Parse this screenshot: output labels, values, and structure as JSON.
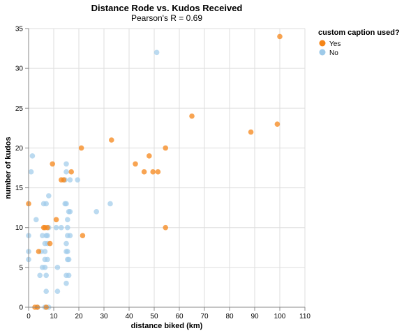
{
  "colors": {
    "yes": "#f58518",
    "no": "#9ecae9",
    "grid": "#dddddd",
    "axis": "#888888"
  },
  "chart_data": {
    "type": "scatter",
    "title": "Distance Rode vs. Kudos Received",
    "subtitle": "Pearson's R = 0.69",
    "xlabel": "distance biked (km)",
    "ylabel": "number of kudos",
    "xlim": [
      0,
      110
    ],
    "ylim": [
      0,
      35
    ],
    "x_ticks": [
      "0",
      "10",
      "20",
      "30",
      "40",
      "50",
      "60",
      "70",
      "80",
      "90",
      "100",
      "110"
    ],
    "y_ticks": [
      "0",
      "5",
      "10",
      "15",
      "20",
      "25",
      "30",
      "35"
    ],
    "grid": true,
    "legend": {
      "title": "custom caption used?",
      "position": "right",
      "entries": [
        "Yes",
        "No"
      ]
    },
    "series": [
      {
        "name": "Yes",
        "points": [
          [
            0,
            13
          ],
          [
            2.5,
            0
          ],
          [
            3.5,
            0
          ],
          [
            4,
            7
          ],
          [
            6,
            10
          ],
          [
            6.5,
            10
          ],
          [
            7,
            0
          ],
          [
            7.5,
            10
          ],
          [
            8.5,
            8
          ],
          [
            9.5,
            18
          ],
          [
            11,
            11
          ],
          [
            13,
            16
          ],
          [
            14,
            16
          ],
          [
            17,
            17
          ],
          [
            21,
            20
          ],
          [
            21.5,
            9
          ],
          [
            33,
            21
          ],
          [
            42.5,
            18
          ],
          [
            46,
            17
          ],
          [
            48,
            19
          ],
          [
            49.5,
            17
          ],
          [
            51.5,
            17
          ],
          [
            54.5,
            20
          ],
          [
            54.5,
            10
          ],
          [
            65,
            24
          ],
          [
            88.5,
            22
          ],
          [
            99,
            23
          ],
          [
            100,
            34
          ]
        ]
      },
      {
        "name": "No",
        "points": [
          [
            0,
            9
          ],
          [
            0,
            7
          ],
          [
            0,
            6
          ],
          [
            1,
            17
          ],
          [
            1.5,
            19
          ],
          [
            3,
            11
          ],
          [
            3.5,
            0
          ],
          [
            4.5,
            4
          ],
          [
            5,
            7
          ],
          [
            5.5,
            5
          ],
          [
            5.5,
            9
          ],
          [
            6,
            13
          ],
          [
            6.5,
            8
          ],
          [
            6.5,
            7
          ],
          [
            6.5,
            6
          ],
          [
            6.5,
            5
          ],
          [
            6.5,
            0
          ],
          [
            7,
            13
          ],
          [
            7,
            9
          ],
          [
            7,
            4
          ],
          [
            7,
            2
          ],
          [
            7.5,
            8
          ],
          [
            7.5,
            9
          ],
          [
            7.5,
            6
          ],
          [
            8,
            10
          ],
          [
            8,
            14
          ],
          [
            8,
            0
          ],
          [
            11,
            10
          ],
          [
            11.5,
            5
          ],
          [
            11.5,
            2
          ],
          [
            13,
            10
          ],
          [
            14.5,
            13
          ],
          [
            14.5,
            16
          ],
          [
            15,
            13
          ],
          [
            15,
            7
          ],
          [
            15,
            18
          ],
          [
            15,
            17
          ],
          [
            15,
            8
          ],
          [
            15,
            4
          ],
          [
            15,
            3
          ],
          [
            15.5,
            9
          ],
          [
            15.5,
            6
          ],
          [
            15.5,
            7
          ],
          [
            15.5,
            10
          ],
          [
            15.5,
            11
          ],
          [
            16,
            6
          ],
          [
            16,
            4
          ],
          [
            16,
            12
          ],
          [
            16.5,
            16
          ],
          [
            16.5,
            12
          ],
          [
            16.5,
            9
          ],
          [
            19.5,
            16
          ],
          [
            27,
            12
          ],
          [
            32.5,
            13
          ],
          [
            51,
            32
          ]
        ]
      }
    ]
  }
}
